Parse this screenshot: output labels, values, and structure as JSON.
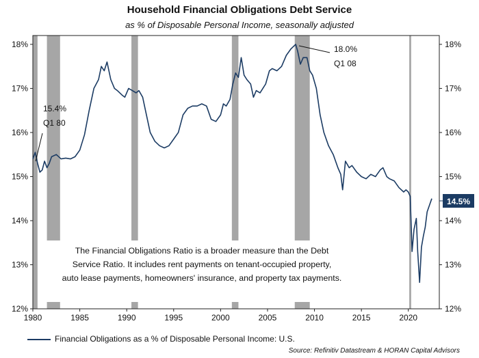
{
  "title": "Household Financial Obligations Debt Service",
  "subtitle": "as % of Disposable Personal Income, seasonally adjusted",
  "legend_label": "Financial Obligations as a % of Disposable Personal Income: U.S.",
  "source": "Source: Refinitiv Datastream & HORAN Capital Advisors",
  "note": [
    "The Financial Obligations Ratio is a broader measure than the Debt",
    "Service Ratio. It includes rent payments on tenant-occupied property,",
    "auto lease payments, homeowners' insurance, and property tax payments."
  ],
  "annotations": {
    "low_value": "15.4%",
    "low_period": "Q1 80",
    "high_value": "18.0%",
    "high_period": "Q1 08",
    "last_value": "14.5%"
  },
  "colors": {
    "line": "#1b3b63",
    "recession": "#a6a6a6",
    "badge": "#1b3b63"
  },
  "chart_data": {
    "type": "line",
    "title": "Household Financial Obligations Debt Service",
    "subtitle": "as % of Disposable Personal Income, seasonally adjusted",
    "xlabel": "",
    "ylabel": "",
    "xlim": [
      1980,
      2023.3
    ],
    "ylim": [
      12,
      18.2
    ],
    "x_ticks": [
      1980,
      1985,
      1990,
      1995,
      2000,
      2005,
      2010,
      2015,
      2020
    ],
    "y_ticks": [
      12,
      13,
      14,
      15,
      16,
      17,
      18
    ],
    "y_tick_labels": [
      "12%",
      "13%",
      "14%",
      "15%",
      "16%",
      "17%",
      "18%"
    ],
    "grid": false,
    "legend_position": "bottom",
    "recessions": [
      [
        1980.0,
        1980.5
      ],
      [
        1981.5,
        1982.9
      ],
      [
        1990.5,
        1991.2
      ],
      [
        2001.2,
        2001.9
      ],
      [
        2007.9,
        2009.5
      ],
      [
        2020.1,
        2020.3
      ]
    ],
    "series": [
      {
        "name": "Financial Obligations as a % of Disposable Personal Income: U.S.",
        "points": [
          [
            1980.0,
            15.4
          ],
          [
            1980.25,
            15.55
          ],
          [
            1980.5,
            15.3
          ],
          [
            1980.75,
            15.1
          ],
          [
            1981.0,
            15.15
          ],
          [
            1981.25,
            15.35
          ],
          [
            1981.5,
            15.2
          ],
          [
            1981.75,
            15.3
          ],
          [
            1982.0,
            15.45
          ],
          [
            1982.5,
            15.5
          ],
          [
            1983.0,
            15.4
          ],
          [
            1983.5,
            15.42
          ],
          [
            1984.0,
            15.4
          ],
          [
            1984.5,
            15.45
          ],
          [
            1985.0,
            15.6
          ],
          [
            1985.5,
            15.95
          ],
          [
            1986.0,
            16.5
          ],
          [
            1986.5,
            17.0
          ],
          [
            1987.0,
            17.2
          ],
          [
            1987.3,
            17.5
          ],
          [
            1987.6,
            17.4
          ],
          [
            1987.9,
            17.6
          ],
          [
            1988.3,
            17.2
          ],
          [
            1988.7,
            17.0
          ],
          [
            1989.0,
            16.95
          ],
          [
            1989.5,
            16.85
          ],
          [
            1989.8,
            16.8
          ],
          [
            1990.2,
            17.0
          ],
          [
            1990.6,
            16.95
          ],
          [
            1991.0,
            16.9
          ],
          [
            1991.3,
            16.95
          ],
          [
            1991.7,
            16.8
          ],
          [
            1992.0,
            16.5
          ],
          [
            1992.5,
            16.0
          ],
          [
            1993.0,
            15.8
          ],
          [
            1993.5,
            15.7
          ],
          [
            1994.0,
            15.65
          ],
          [
            1994.5,
            15.7
          ],
          [
            1995.0,
            15.85
          ],
          [
            1995.5,
            16.0
          ],
          [
            1996.0,
            16.4
          ],
          [
            1996.5,
            16.55
          ],
          [
            1997.0,
            16.6
          ],
          [
            1997.5,
            16.6
          ],
          [
            1998.0,
            16.65
          ],
          [
            1998.5,
            16.6
          ],
          [
            1999.0,
            16.3
          ],
          [
            1999.5,
            16.25
          ],
          [
            2000.0,
            16.4
          ],
          [
            2000.3,
            16.65
          ],
          [
            2000.6,
            16.6
          ],
          [
            2001.0,
            16.75
          ],
          [
            2001.3,
            17.1
          ],
          [
            2001.6,
            17.35
          ],
          [
            2001.9,
            17.25
          ],
          [
            2002.2,
            17.7
          ],
          [
            2002.5,
            17.3
          ],
          [
            2002.8,
            17.2
          ],
          [
            2003.2,
            17.1
          ],
          [
            2003.5,
            16.8
          ],
          [
            2003.8,
            16.95
          ],
          [
            2004.2,
            16.9
          ],
          [
            2004.5,
            17.0
          ],
          [
            2004.8,
            17.1
          ],
          [
            2005.2,
            17.4
          ],
          [
            2005.5,
            17.45
          ],
          [
            2006.0,
            17.4
          ],
          [
            2006.5,
            17.5
          ],
          [
            2007.0,
            17.75
          ],
          [
            2007.5,
            17.9
          ],
          [
            2008.0,
            18.0
          ],
          [
            2008.2,
            17.85
          ],
          [
            2008.5,
            17.55
          ],
          [
            2008.8,
            17.7
          ],
          [
            2009.2,
            17.7
          ],
          [
            2009.5,
            17.4
          ],
          [
            2009.8,
            17.3
          ],
          [
            2010.2,
            17.0
          ],
          [
            2010.6,
            16.4
          ],
          [
            2011.0,
            16.0
          ],
          [
            2011.5,
            15.7
          ],
          [
            2012.0,
            15.5
          ],
          [
            2012.5,
            15.2
          ],
          [
            2012.8,
            15.05
          ],
          [
            2013.0,
            14.7
          ],
          [
            2013.3,
            15.35
          ],
          [
            2013.7,
            15.2
          ],
          [
            2014.0,
            15.25
          ],
          [
            2014.5,
            15.1
          ],
          [
            2015.0,
            15.0
          ],
          [
            2015.5,
            14.95
          ],
          [
            2016.0,
            15.05
          ],
          [
            2016.5,
            15.0
          ],
          [
            2017.0,
            15.15
          ],
          [
            2017.3,
            15.2
          ],
          [
            2017.7,
            15.0
          ],
          [
            2018.0,
            14.95
          ],
          [
            2018.5,
            14.9
          ],
          [
            2019.0,
            14.75
          ],
          [
            2019.5,
            14.65
          ],
          [
            2019.75,
            14.7
          ],
          [
            2020.0,
            14.65
          ],
          [
            2020.2,
            14.55
          ],
          [
            2020.4,
            13.3
          ],
          [
            2020.6,
            13.8
          ],
          [
            2020.85,
            14.05
          ],
          [
            2021.0,
            13.3
          ],
          [
            2021.2,
            12.6
          ],
          [
            2021.4,
            13.4
          ],
          [
            2021.6,
            13.65
          ],
          [
            2021.8,
            13.85
          ],
          [
            2022.0,
            14.2
          ],
          [
            2022.25,
            14.35
          ],
          [
            2022.5,
            14.5
          ]
        ]
      }
    ]
  }
}
